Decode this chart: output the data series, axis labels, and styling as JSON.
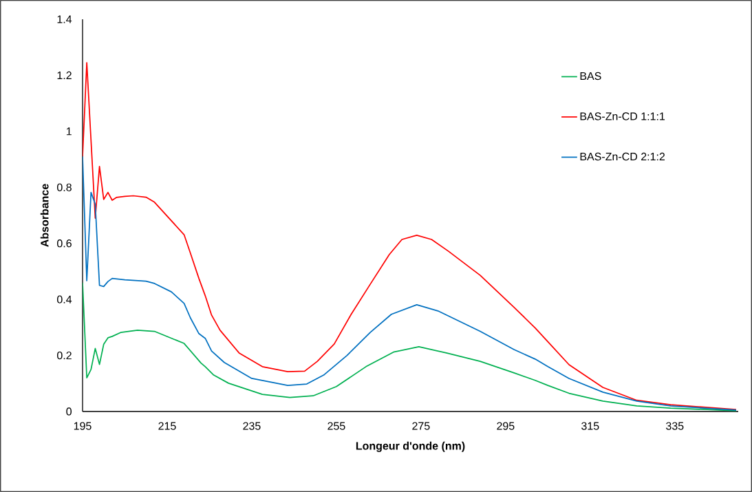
{
  "chart_data": {
    "type": "line",
    "xlabel": "Longeur d'onde (nm)",
    "ylabel": "Absorbance",
    "xlim": [
      195,
      350
    ],
    "xticks": [
      195,
      215,
      235,
      255,
      275,
      295,
      315,
      335
    ],
    "ylim": [
      0,
      1.4
    ],
    "yticks": [
      0,
      0.2,
      0.4,
      0.6,
      0.8,
      1,
      1.2,
      1.4
    ],
    "grid": false,
    "legend": "top right",
    "marker": "none",
    "line_style": "solid",
    "series": [
      {
        "name": "BAS",
        "color": "#00b050",
        "x": [
          195,
          196,
          197,
          198,
          199,
          200,
          201,
          202,
          204,
          208,
          212,
          219,
          223,
          224,
          226,
          229.5,
          237.5,
          244,
          249.5,
          255,
          262,
          268.5,
          274.5,
          281,
          289,
          297,
          302,
          305,
          310,
          318,
          326,
          334,
          349.5
        ],
        "values": [
          0.46,
          0.12,
          0.15,
          0.225,
          0.168,
          0.24,
          0.263,
          0.268,
          0.282,
          0.29,
          0.286,
          0.243,
          0.173,
          0.16,
          0.13,
          0.101,
          0.061,
          0.05,
          0.056,
          0.089,
          0.16,
          0.212,
          0.231,
          0.209,
          0.179,
          0.138,
          0.111,
          0.093,
          0.065,
          0.037,
          0.02,
          0.012,
          0.003
        ]
      },
      {
        "name": "BAS-Zn-CD 1:1:1",
        "color": "#ff0000",
        "x": [
          195,
          196,
          198,
          199,
          200,
          201,
          202,
          203,
          205,
          207,
          210,
          212,
          219,
          220.5,
          222.5,
          224,
          225.5,
          227.5,
          232,
          237.5,
          243.5,
          247.5,
          250.5,
          254.5,
          258.5,
          263,
          267.5,
          270.5,
          274,
          277.5,
          281.5,
          289,
          297,
          302,
          305,
          310,
          318,
          326,
          334,
          349.5
        ],
        "values": [
          0.91,
          1.245,
          0.69,
          0.875,
          0.757,
          0.782,
          0.754,
          0.764,
          0.768,
          0.77,
          0.765,
          0.747,
          0.631,
          0.565,
          0.475,
          0.413,
          0.344,
          0.29,
          0.209,
          0.16,
          0.142,
          0.144,
          0.179,
          0.241,
          0.347,
          0.454,
          0.56,
          0.614,
          0.629,
          0.614,
          0.572,
          0.486,
          0.372,
          0.298,
          0.249,
          0.167,
          0.086,
          0.04,
          0.024,
          0.007
        ]
      },
      {
        "name": "BAS-Zn-CD 2:1:2",
        "color": "#0070c0",
        "x": [
          195,
          196,
          197,
          198,
          199,
          200,
          201,
          202,
          205,
          210,
          212,
          216,
          219,
          220.5,
          222.5,
          224,
          225.5,
          228.5,
          235,
          243.5,
          248,
          252,
          257.5,
          263,
          268,
          274,
          279,
          289,
          297,
          302,
          305,
          310,
          318,
          326,
          334,
          349.5
        ],
        "values": [
          0.91,
          0.467,
          0.782,
          0.74,
          0.45,
          0.446,
          0.464,
          0.475,
          0.47,
          0.465,
          0.457,
          0.427,
          0.386,
          0.334,
          0.278,
          0.261,
          0.216,
          0.175,
          0.118,
          0.093,
          0.098,
          0.13,
          0.2,
          0.282,
          0.347,
          0.381,
          0.359,
          0.286,
          0.221,
          0.187,
          0.16,
          0.118,
          0.069,
          0.037,
          0.02,
          0.005
        ]
      }
    ]
  }
}
